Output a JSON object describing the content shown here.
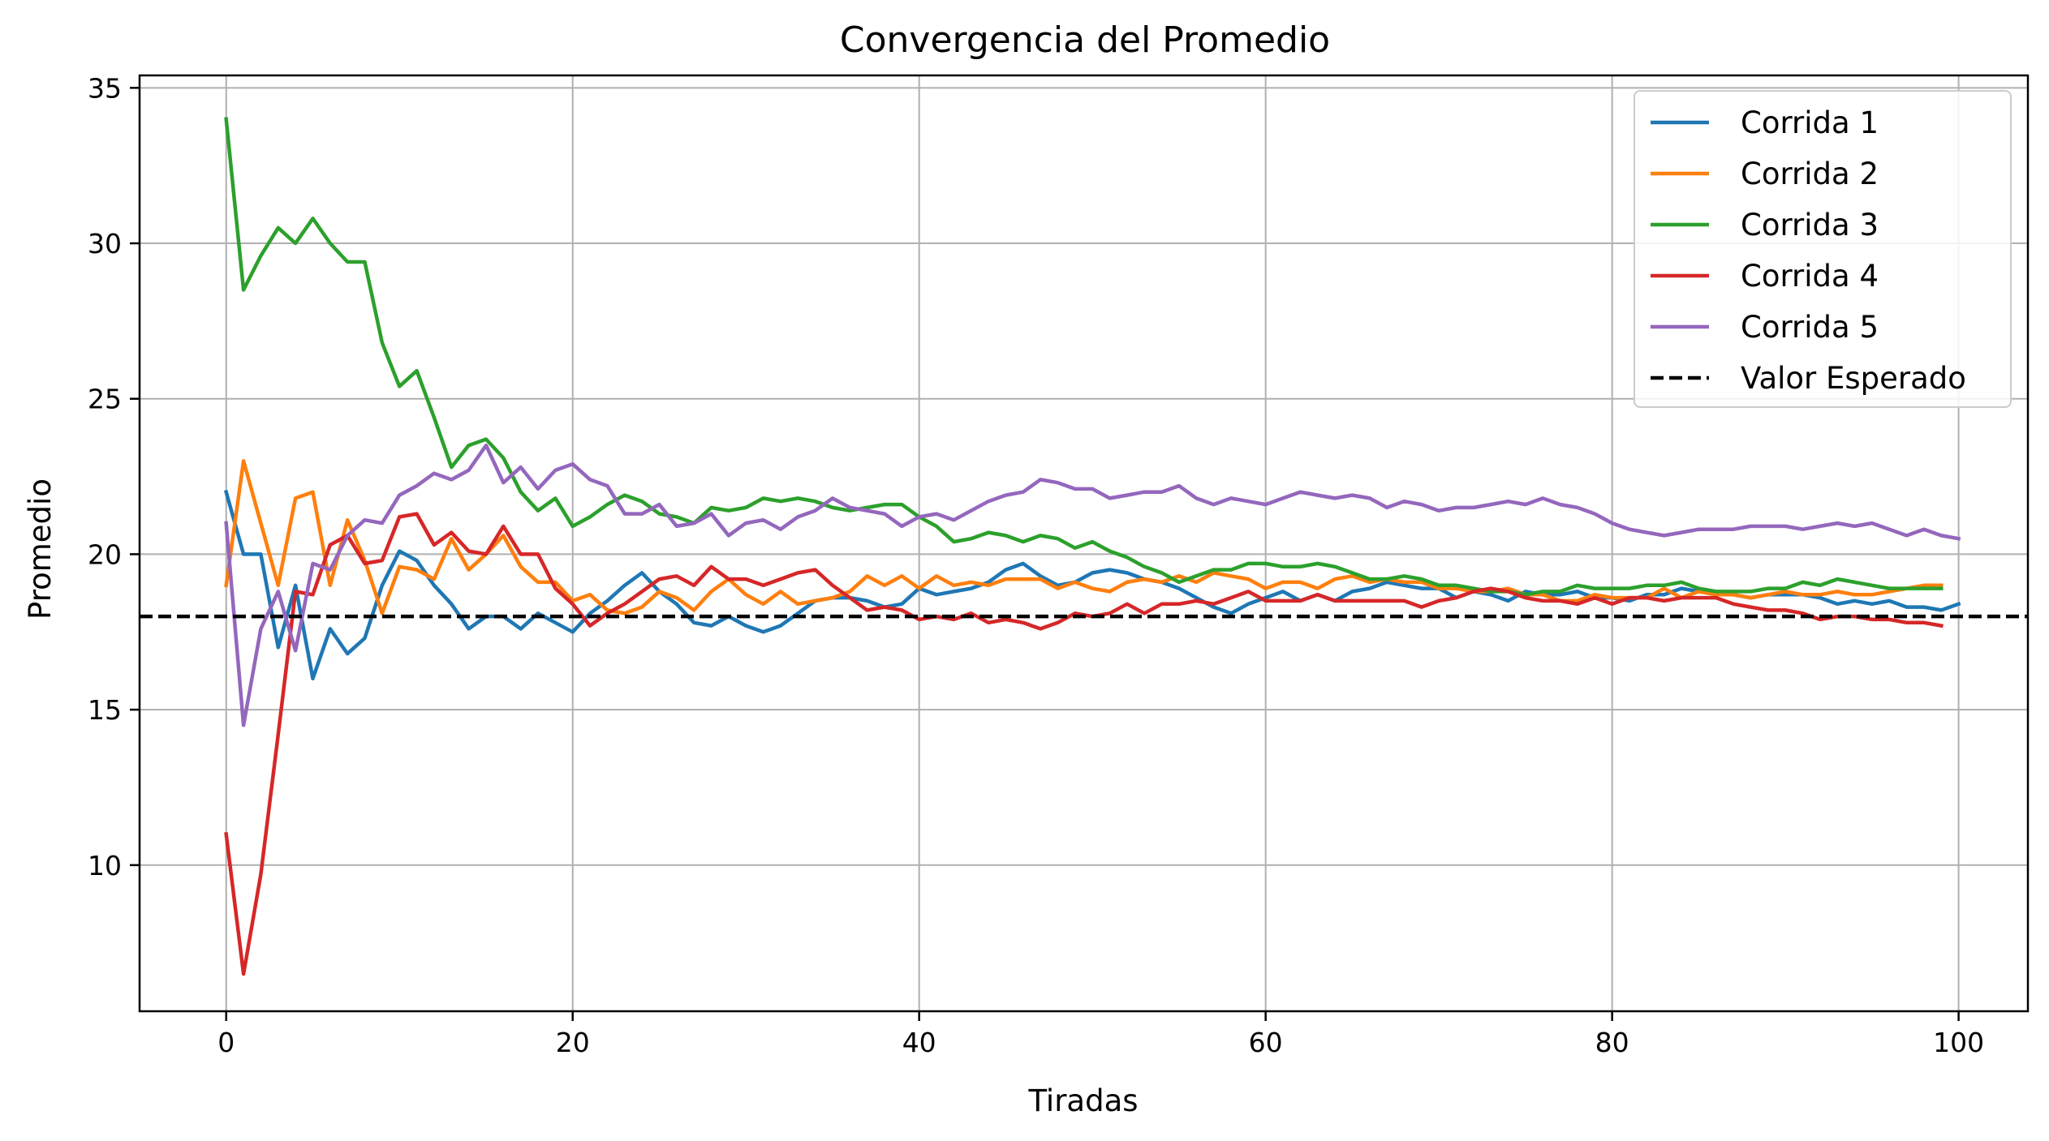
{
  "chart_data": {
    "type": "line",
    "title": "Convergencia del Promedio",
    "xlabel": "Tiradas",
    "ylabel": "Promedio",
    "xlim": [
      -5,
      104
    ],
    "ylim": [
      5.3,
      35.4
    ],
    "xticks": [
      0,
      20,
      40,
      60,
      80,
      100
    ],
    "yticks": [
      10,
      15,
      20,
      25,
      30,
      35
    ],
    "grid": true,
    "legend_position": "top-right",
    "colors": {
      "Corrida 1": "#1f77b4",
      "Corrida 2": "#ff7f0e",
      "Corrida 3": "#2ca02c",
      "Corrida 4": "#d62728",
      "Corrida 5": "#9467bd",
      "Valor Esperado": "#000000"
    },
    "reference_line": {
      "name": "Valor Esperado",
      "y": 18,
      "style": "dashed"
    },
    "series": [
      {
        "name": "Corrida 1",
        "values": [
          22.0,
          20.0,
          20.0,
          17.0,
          19.0,
          16.0,
          17.6,
          16.8,
          17.3,
          19.0,
          20.1,
          19.8,
          19.0,
          18.4,
          17.6,
          18.0,
          18.0,
          17.6,
          18.1,
          17.8,
          17.5,
          18.1,
          18.5,
          19.0,
          19.4,
          18.8,
          18.4,
          17.8,
          17.7,
          18.0,
          17.7,
          17.5,
          17.7,
          18.1,
          18.5,
          18.6,
          18.6,
          18.5,
          18.3,
          18.4,
          18.9,
          18.7,
          18.8,
          18.9,
          19.1,
          19.5,
          19.7,
          19.3,
          19.0,
          19.1,
          19.4,
          19.5,
          19.4,
          19.2,
          19.1,
          18.9,
          18.6,
          18.3,
          18.1,
          18.4,
          18.6,
          18.8,
          18.5,
          18.7,
          18.5,
          18.8,
          18.9,
          19.1,
          19.0,
          18.9,
          18.9,
          18.6,
          18.8,
          18.7,
          18.5,
          18.8,
          18.7,
          18.7,
          18.8,
          18.6,
          18.6,
          18.5,
          18.7,
          18.7,
          18.9,
          18.8,
          18.8,
          18.7,
          18.6,
          18.7,
          18.7,
          18.7,
          18.6,
          18.4,
          18.5,
          18.4,
          18.5,
          18.3,
          18.3,
          18.2,
          18.4
        ]
      },
      {
        "name": "Corrida 2",
        "values": [
          19.0,
          23.0,
          21.0,
          19.0,
          21.8,
          22.0,
          19.0,
          21.1,
          19.8,
          18.1,
          19.6,
          19.5,
          19.2,
          20.5,
          19.5,
          20.0,
          20.6,
          19.6,
          19.1,
          19.1,
          18.5,
          18.7,
          18.2,
          18.1,
          18.3,
          18.8,
          18.6,
          18.2,
          18.8,
          19.2,
          18.7,
          18.4,
          18.8,
          18.4,
          18.5,
          18.6,
          18.8,
          19.3,
          19.0,
          19.3,
          18.9,
          19.3,
          19.0,
          19.1,
          19.0,
          19.2,
          19.2,
          19.2,
          18.9,
          19.1,
          18.9,
          18.8,
          19.1,
          19.2,
          19.1,
          19.3,
          19.1,
          19.4,
          19.3,
          19.2,
          18.9,
          19.1,
          19.1,
          18.9,
          19.2,
          19.3,
          19.1,
          19.2,
          19.1,
          19.1,
          18.9,
          18.9,
          18.8,
          18.8,
          18.9,
          18.7,
          18.7,
          18.5,
          18.5,
          18.7,
          18.6,
          18.6,
          18.6,
          18.9,
          18.6,
          18.8,
          18.7,
          18.7,
          18.6,
          18.7,
          18.8,
          18.7,
          18.7,
          18.8,
          18.7,
          18.7,
          18.8,
          18.9,
          19.0,
          19.0
        ]
      },
      {
        "name": "Corrida 3",
        "values": [
          34.0,
          28.5,
          29.6,
          30.5,
          30.0,
          30.8,
          30.0,
          29.4,
          29.4,
          26.8,
          25.4,
          25.9,
          24.4,
          22.8,
          23.5,
          23.7,
          23.1,
          22.0,
          21.4,
          21.8,
          20.9,
          21.2,
          21.6,
          21.9,
          21.7,
          21.3,
          21.2,
          21.0,
          21.5,
          21.4,
          21.5,
          21.8,
          21.7,
          21.8,
          21.7,
          21.5,
          21.4,
          21.5,
          21.6,
          21.6,
          21.2,
          20.9,
          20.4,
          20.5,
          20.7,
          20.6,
          20.4,
          20.6,
          20.5,
          20.2,
          20.4,
          20.1,
          19.9,
          19.6,
          19.4,
          19.1,
          19.3,
          19.5,
          19.5,
          19.7,
          19.7,
          19.6,
          19.6,
          19.7,
          19.6,
          19.4,
          19.2,
          19.2,
          19.3,
          19.2,
          19.0,
          19.0,
          18.9,
          18.8,
          18.8,
          18.7,
          18.8,
          18.8,
          19.0,
          18.9,
          18.9,
          18.9,
          19.0,
          19.0,
          19.1,
          18.9,
          18.8,
          18.8,
          18.8,
          18.9,
          18.9,
          19.1,
          19.0,
          19.2,
          19.1,
          19.0,
          18.9,
          18.9,
          18.9,
          18.9
        ]
      },
      {
        "name": "Corrida 4",
        "values": [
          11.0,
          6.5,
          9.7,
          14.2,
          18.8,
          18.7,
          20.3,
          20.6,
          19.7,
          19.8,
          21.2,
          21.3,
          20.3,
          20.7,
          20.1,
          20.0,
          20.9,
          20.0,
          20.0,
          18.9,
          18.4,
          17.7,
          18.1,
          18.4,
          18.8,
          19.2,
          19.3,
          19.0,
          19.6,
          19.2,
          19.2,
          19.0,
          19.2,
          19.4,
          19.5,
          19.0,
          18.6,
          18.2,
          18.3,
          18.2,
          17.9,
          18.0,
          17.9,
          18.1,
          17.8,
          17.9,
          17.8,
          17.6,
          17.8,
          18.1,
          18.0,
          18.1,
          18.4,
          18.1,
          18.4,
          18.4,
          18.5,
          18.4,
          18.6,
          18.8,
          18.5,
          18.5,
          18.5,
          18.7,
          18.5,
          18.5,
          18.5,
          18.5,
          18.5,
          18.3,
          18.5,
          18.6,
          18.8,
          18.9,
          18.8,
          18.6,
          18.5,
          18.5,
          18.4,
          18.6,
          18.4,
          18.6,
          18.6,
          18.5,
          18.6,
          18.6,
          18.6,
          18.4,
          18.3,
          18.2,
          18.2,
          18.1,
          17.9,
          18.0,
          18.0,
          17.9,
          17.9,
          17.8,
          17.8,
          17.7
        ]
      },
      {
        "name": "Corrida 5",
        "values": [
          21.0,
          14.5,
          17.6,
          18.8,
          16.9,
          19.7,
          19.5,
          20.6,
          21.1,
          21.0,
          21.9,
          22.2,
          22.6,
          22.4,
          22.7,
          23.5,
          22.3,
          22.8,
          22.1,
          22.7,
          22.9,
          22.4,
          22.2,
          21.3,
          21.3,
          21.6,
          20.9,
          21.0,
          21.3,
          20.6,
          21.0,
          21.1,
          20.8,
          21.2,
          21.4,
          21.8,
          21.5,
          21.4,
          21.3,
          20.9,
          21.2,
          21.3,
          21.1,
          21.4,
          21.7,
          21.9,
          22.0,
          22.4,
          22.3,
          22.1,
          22.1,
          21.8,
          21.9,
          22.0,
          22.0,
          22.2,
          21.8,
          21.6,
          21.8,
          21.7,
          21.6,
          21.8,
          22.0,
          21.9,
          21.8,
          21.9,
          21.8,
          21.5,
          21.7,
          21.6,
          21.4,
          21.5,
          21.5,
          21.6,
          21.7,
          21.6,
          21.8,
          21.6,
          21.5,
          21.3,
          21.0,
          20.8,
          20.7,
          20.6,
          20.7,
          20.8,
          20.8,
          20.8,
          20.9,
          20.9,
          20.9,
          20.8,
          20.9,
          21.0,
          20.9,
          21.0,
          20.8,
          20.6,
          20.8,
          20.6,
          20.5
        ]
      }
    ]
  }
}
